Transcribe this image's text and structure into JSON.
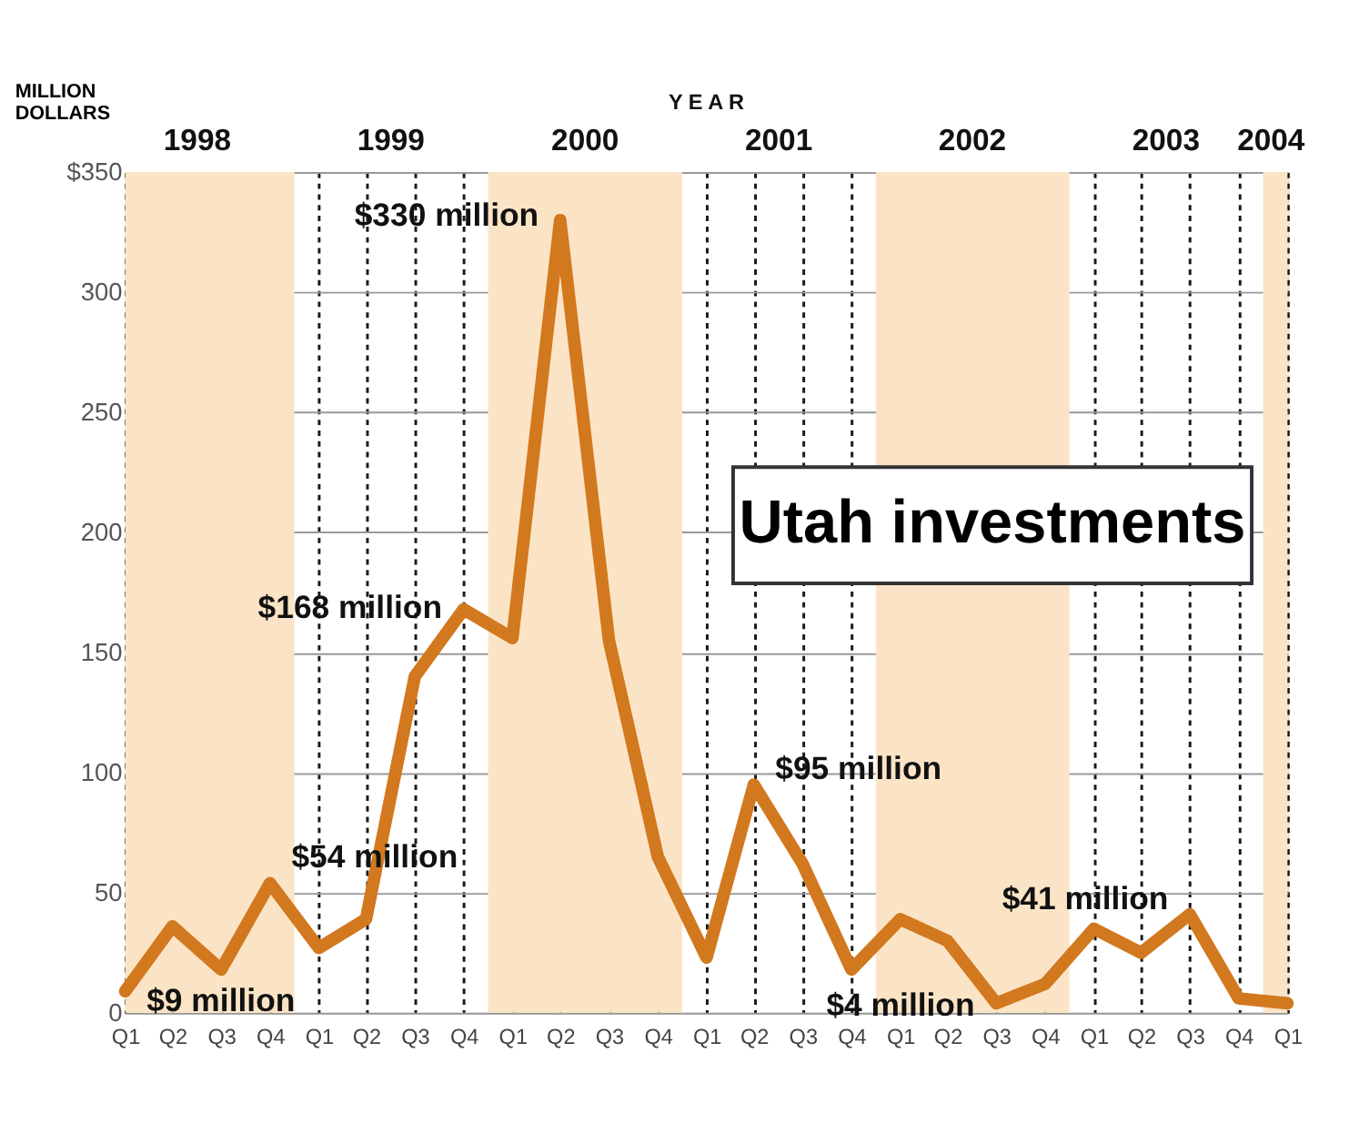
{
  "chart_data": {
    "type": "line",
    "title": "Utah investments",
    "ylabel": "MILLION DOLLARS",
    "x2label": "Y E A R",
    "x": [
      "1998-02-15",
      "1998-05-15",
      "1998-08-15",
      "1998-11-15",
      "1999-02-15",
      "1999-05-15",
      "1999-08-15",
      "1999-11-15",
      "2000-02-15",
      "2000-05-15",
      "2000-08-15",
      "2000-11-15",
      "2001-02-15",
      "2001-05-15",
      "2001-08-15",
      "2001-11-15",
      "2002-02-15",
      "2002-05-15",
      "2002-08-15",
      "2002-11-15",
      "2003-02-15",
      "2003-05-15",
      "2003-08-15",
      "2003-11-15",
      "2004-02-15"
    ],
    "series": [
      {
        "color": "#d2781e",
        "values": [
          9,
          36,
          18,
          54,
          27,
          39,
          140,
          168,
          156,
          330,
          155,
          65,
          23,
          95,
          62,
          18,
          39,
          30,
          4,
          12,
          35,
          25,
          41,
          6,
          4
        ]
      }
    ],
    "xlim": [
      "1998-02-15",
      "2004-02-15"
    ],
    "xticks": [
      {
        "value": "1998-02-15",
        "label": "Q1"
      },
      {
        "value": "1998-05-15",
        "label": "Q2"
      },
      {
        "value": "1998-08-15",
        "label": "Q3"
      },
      {
        "value": "1998-11-15",
        "label": "Q4"
      },
      {
        "value": "1999-02-15",
        "label": "Q1"
      },
      {
        "value": "1999-05-15",
        "label": "Q2"
      },
      {
        "value": "1999-08-15",
        "label": "Q3"
      },
      {
        "value": "1999-11-15",
        "label": "Q4"
      },
      {
        "value": "2000-02-15",
        "label": "Q1"
      },
      {
        "value": "2000-05-15",
        "label": "Q2"
      },
      {
        "value": "2000-08-15",
        "label": "Q3"
      },
      {
        "value": "2000-11-15",
        "label": "Q4"
      },
      {
        "value": "2001-02-15",
        "label": "Q1"
      },
      {
        "value": "2001-05-15",
        "label": "Q2"
      },
      {
        "value": "2001-08-15",
        "label": "Q3"
      },
      {
        "value": "2001-11-15",
        "label": "Q4"
      },
      {
        "value": "2002-02-15",
        "label": "Q1"
      },
      {
        "value": "2002-05-15",
        "label": "Q2"
      },
      {
        "value": "2002-08-15",
        "label": "Q3"
      },
      {
        "value": "2002-11-15",
        "label": "Q4"
      },
      {
        "value": "2003-02-15",
        "label": "Q1"
      },
      {
        "value": "2003-05-15",
        "label": "Q2"
      },
      {
        "value": "2003-08-15",
        "label": "Q3"
      },
      {
        "value": "2003-11-15",
        "label": "Q4"
      },
      {
        "value": "2004-02-15",
        "label": "Q1"
      }
    ],
    "x2lim": [
      "1998-02-15",
      "2004-02-15"
    ],
    "x2ticks": [
      {
        "value": "1998-07-01",
        "label": "1998"
      },
      {
        "value": "1999-07-01",
        "label": "1999"
      },
      {
        "value": "2000-07-01",
        "label": "2000"
      },
      {
        "value": "2001-07-01",
        "label": "2001"
      },
      {
        "value": "2002-07-01",
        "label": "2002"
      },
      {
        "value": "2003-07-01",
        "label": "2003"
      },
      {
        "value": "2004-01-15",
        "label": "2004"
      }
    ],
    "ylim": [
      0,
      350
    ],
    "yticks": [
      0,
      50,
      100,
      150,
      200,
      250,
      300,
      {
        "value": 350,
        "label": "$350"
      }
    ],
    "grid": true,
    "line_style": "solid",
    "bands": [
      {
        "axis": "x",
        "from": "1998-02-15",
        "to": "1998-12-31",
        "color": "#fbe4c6"
      },
      {
        "axis": "x",
        "from": "1999-12-31",
        "to": "2000-12-31",
        "color": "#fbe4c6"
      },
      {
        "axis": "x",
        "from": "2001-12-31",
        "to": "2002-12-31",
        "color": "#fbe4c6"
      },
      {
        "axis": "x",
        "from": "2003-12-31",
        "to": "2004-02-15",
        "color": "#fbe4c6"
      }
    ],
    "annotations": [
      {
        "text": "$330 million",
        "x": "2000-05-15",
        "y": 330
      },
      {
        "text": "$168 million",
        "x": "1999-11-15",
        "y": 168
      },
      {
        "text": "$54 million",
        "x": "1998-11-15",
        "y": 54
      },
      {
        "text": "$9 million",
        "x": "1998-02-15",
        "y": 9
      },
      {
        "text": "$95 million",
        "x": "2001-05-15",
        "y": 95
      },
      {
        "text": "$4 million",
        "x": "2002-08-15",
        "y": 4
      },
      {
        "text": "$41 million",
        "x": "2003-08-15",
        "y": 41
      }
    ]
  }
}
